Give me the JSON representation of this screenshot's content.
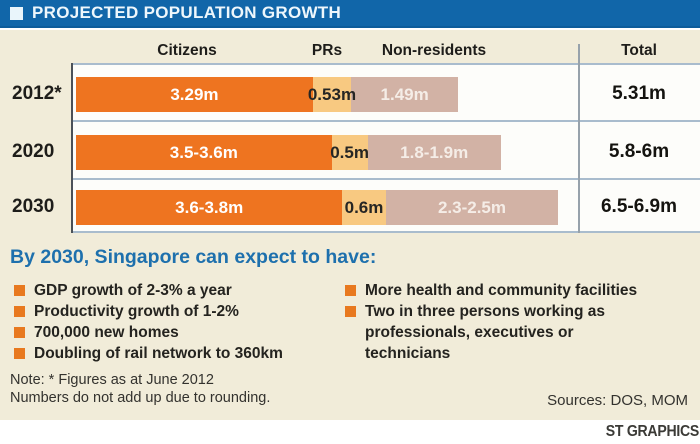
{
  "title_bar": {
    "title": "PROJECTED POPULATION GROWTH",
    "bg_color": "#1166a9",
    "square_icon_color": "#e9f5fb"
  },
  "chart_data": {
    "type": "bar",
    "variant": "horizontal-stacked",
    "title": "PROJECTED POPULATION GROWTH",
    "column_headers": [
      "Citizens",
      "PRs",
      "Non-residents",
      "Total"
    ],
    "categories": [
      "2012*",
      "2020",
      "2030"
    ],
    "series": [
      {
        "name": "Citizens",
        "color": "#ee7420",
        "label_color": "#ffffff",
        "labels": [
          "3.29m",
          "3.5-3.6m",
          "3.6-3.8m"
        ],
        "values": [
          3.29,
          3.55,
          3.7
        ]
      },
      {
        "name": "PRs",
        "color": "#f8c981",
        "label_color": "#262624",
        "labels": [
          "0.53m",
          "0.5m",
          "0.6m"
        ],
        "values": [
          0.53,
          0.5,
          0.6
        ]
      },
      {
        "name": "Non-residents",
        "color": "#d2b2a5",
        "label_color": "#f5ede7",
        "labels": [
          "1.49m",
          "1.8-1.9m",
          "2.3-2.5m"
        ],
        "values": [
          1.49,
          1.85,
          2.4
        ]
      }
    ],
    "totals": [
      "5.31m",
      "5.8-6m",
      "6.5-6.9m"
    ],
    "xlim": [
      0,
      7
    ],
    "unit": "millions of people",
    "grid": false,
    "legend_position": "column-headers-top"
  },
  "expect_section": {
    "heading": "By 2030, Singapore can expect to have:",
    "heading_color": "#1e70ad",
    "bullet_color": "#e8791f",
    "left_items": [
      [
        "GDP growth of 2-3% a year"
      ],
      [
        "Productivity growth of 1-2%"
      ],
      [
        "700,000 new homes"
      ],
      [
        "Doubling of rail network to 360km"
      ]
    ],
    "right_items": [
      [
        "More health and community facilities"
      ],
      [
        "Two in three persons working as",
        "professionals, executives or",
        "technicians"
      ]
    ]
  },
  "footnote": {
    "note_line1": "Note: * Figures as at June 2012",
    "note_line2": "Numbers do not add up due to rounding.",
    "sources": "Sources: DOS, MOM"
  },
  "credit": "ST GRAPHICS",
  "colors": {
    "panel_bg": "#f1ecd9",
    "table_bg": "#fdfdfa",
    "separator_line": "#a9bccd",
    "axis_line": "#4b5158",
    "total_divider": "#97a2ab",
    "text_dark": "#1e1d1a"
  }
}
